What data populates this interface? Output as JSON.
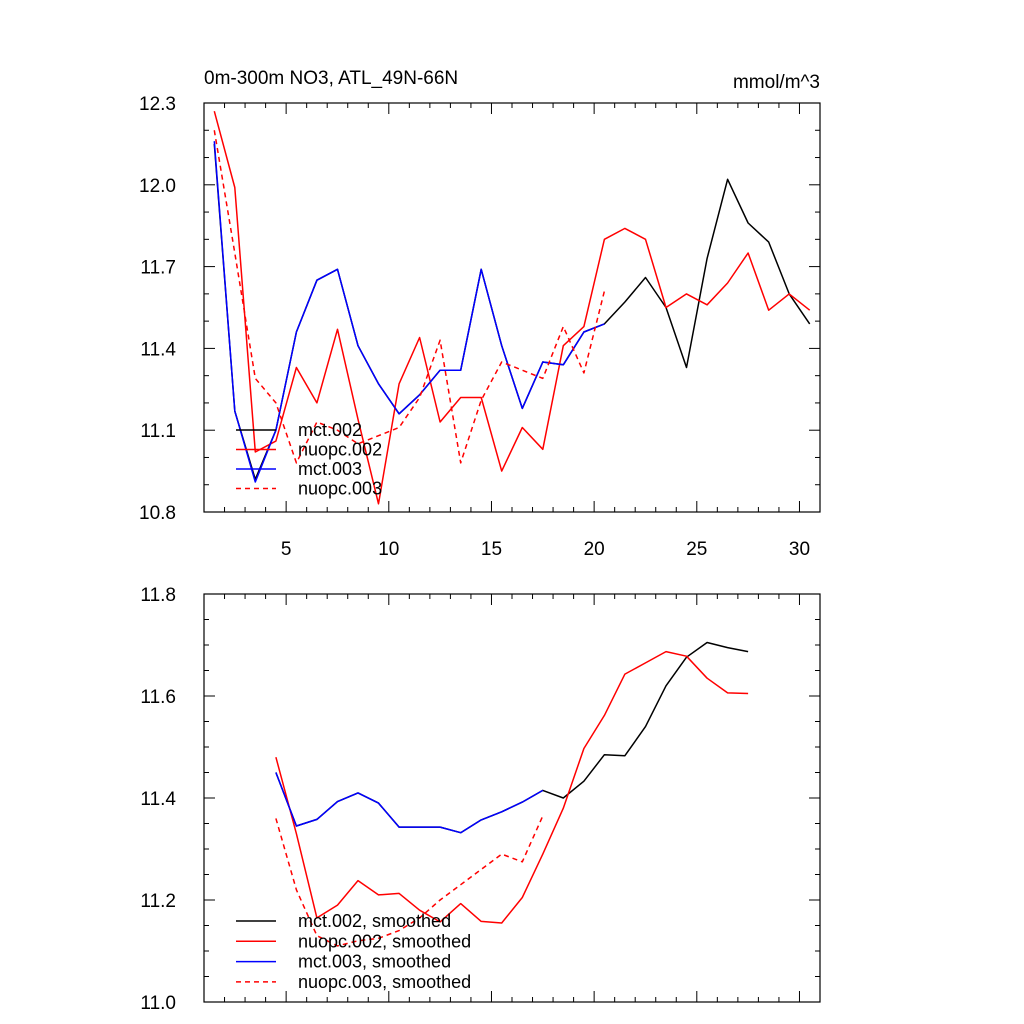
{
  "figure": {
    "title_left": "0m-300m NO3, ATL_49N-66N",
    "title_right": "mmol/m^3"
  },
  "chart_data": [
    {
      "type": "line",
      "title": "0m-300m NO3, ATL_49N-66N",
      "units": "mmol/m^3",
      "xlim": [
        1,
        31
      ],
      "ylim": [
        10.8,
        12.3
      ],
      "xticks": [
        5,
        10,
        15,
        20,
        25,
        30
      ],
      "xtick_labels": [
        "5",
        "10",
        "15",
        "20",
        "25",
        "30"
      ],
      "yticks": [
        10.8,
        11.1,
        11.4,
        11.7,
        12.0,
        12.3
      ],
      "ytick_labels": [
        "10.8",
        "11.1",
        "11.4",
        "11.7",
        "12.0",
        "12.3"
      ],
      "legend_position": "lower-left",
      "series": [
        {
          "name": "mct.002",
          "color": "#000000",
          "dash": "solid",
          "x": [
            1.5,
            2.5,
            3.5,
            4.5,
            5.5,
            6.5,
            7.5,
            8.5,
            9.5,
            10.5,
            11.5,
            12.5,
            13.5,
            14.5,
            15.5,
            16.5,
            17.5,
            18.5,
            19.5,
            20.5,
            21.5,
            22.5,
            23.5,
            24.5,
            25.5,
            26.5,
            27.5,
            28.5,
            29.5,
            30.5
          ],
          "values": [
            12.15,
            11.17,
            10.92,
            11.1,
            11.46,
            11.65,
            11.69,
            11.41,
            11.27,
            11.16,
            11.23,
            11.32,
            11.32,
            11.69,
            11.41,
            11.18,
            11.35,
            11.34,
            11.46,
            11.49,
            11.57,
            11.66,
            11.55,
            11.33,
            11.73,
            12.02,
            11.86,
            11.79,
            11.6,
            11.49
          ]
        },
        {
          "name": "nuopc.002",
          "color": "#ff0000",
          "dash": "solid",
          "x": [
            1.5,
            2.5,
            3.5,
            4.5,
            5.5,
            6.5,
            7.5,
            8.5,
            9.5,
            10.5,
            11.5,
            12.5,
            13.5,
            14.5,
            15.5,
            16.5,
            17.5,
            18.5,
            19.5,
            20.5,
            21.5,
            22.5,
            23.5,
            24.5,
            25.5,
            26.5,
            27.5,
            28.5,
            29.5,
            30.5
          ],
          "values": [
            12.27,
            11.99,
            11.02,
            11.06,
            11.33,
            11.2,
            11.47,
            11.14,
            10.83,
            11.27,
            11.44,
            11.13,
            11.22,
            11.22,
            10.95,
            11.11,
            11.03,
            11.41,
            11.48,
            11.8,
            11.84,
            11.8,
            11.55,
            11.6,
            11.56,
            11.64,
            11.75,
            11.54,
            11.6,
            11.54
          ]
        },
        {
          "name": "mct.003",
          "color": "#0000ff",
          "dash": "solid",
          "x": [
            1.5,
            2.5,
            3.5,
            4.5,
            5.5,
            6.5,
            7.5,
            8.5,
            9.5,
            10.5,
            11.5,
            12.5,
            13.5,
            14.5,
            15.5,
            16.5,
            17.5,
            18.5,
            19.5,
            20.5
          ],
          "values": [
            12.16,
            11.17,
            10.91,
            11.1,
            11.46,
            11.65,
            11.69,
            11.41,
            11.27,
            11.16,
            11.23,
            11.32,
            11.32,
            11.69,
            11.41,
            11.18,
            11.35,
            11.34,
            11.46,
            11.49
          ]
        },
        {
          "name": "nuopc.003",
          "color": "#ff0000",
          "dash": "dashed",
          "x": [
            1.5,
            2.5,
            3.5,
            4.5,
            5.5,
            6.5,
            7.5,
            8.5,
            9.5,
            10.5,
            11.5,
            12.5,
            13.5,
            14.5,
            15.5,
            16.5,
            17.5,
            18.5,
            19.5,
            20.5
          ],
          "values": [
            12.2,
            11.75,
            11.29,
            11.2,
            10.98,
            11.13,
            11.1,
            11.05,
            11.08,
            11.11,
            11.22,
            11.43,
            10.98,
            11.21,
            11.35,
            11.32,
            11.29,
            11.48,
            11.31,
            11.61
          ]
        }
      ]
    },
    {
      "type": "line",
      "xlim": [
        1,
        31
      ],
      "ylim": [
        11.0,
        11.8
      ],
      "yticks": [
        11.0,
        11.2,
        11.4,
        11.6,
        11.8
      ],
      "ytick_labels": [
        "11.0",
        "11.2",
        "11.4",
        "11.6",
        "11.8"
      ],
      "legend_position": "lower-left",
      "series": [
        {
          "name": "mct.002, smoothed",
          "color": "#000000",
          "dash": "solid",
          "x": [
            4.5,
            5.5,
            6.5,
            7.5,
            8.5,
            9.5,
            10.5,
            11.5,
            12.5,
            13.5,
            14.5,
            15.5,
            16.5,
            17.5,
            18.5,
            19.5,
            20.5,
            21.5,
            22.5,
            23.5,
            24.5,
            25.5,
            26.5,
            27.5
          ],
          "values": [
            11.45,
            11.345,
            11.358,
            11.393,
            11.41,
            11.39,
            11.343,
            11.343,
            11.343,
            11.332,
            11.357,
            11.373,
            11.392,
            11.415,
            11.4,
            11.433,
            11.485,
            11.483,
            11.54,
            11.62,
            11.676,
            11.705,
            11.695,
            11.687
          ]
        },
        {
          "name": "nuopc.002, smoothed",
          "color": "#ff0000",
          "dash": "solid",
          "x": [
            4.5,
            5.5,
            6.5,
            7.5,
            8.5,
            9.5,
            10.5,
            11.5,
            12.5,
            13.5,
            14.5,
            15.5,
            16.5,
            17.5,
            18.5,
            19.5,
            20.5,
            21.5,
            22.5,
            23.5,
            24.5,
            25.5,
            26.5,
            27.5
          ],
          "values": [
            11.48,
            11.33,
            11.165,
            11.19,
            11.238,
            11.21,
            11.213,
            11.18,
            11.157,
            11.193,
            11.158,
            11.155,
            11.205,
            11.29,
            11.38,
            11.497,
            11.562,
            11.643,
            11.665,
            11.687,
            11.678,
            11.635,
            11.606,
            11.605
          ]
        },
        {
          "name": "mct.003, smoothed",
          "color": "#0000ff",
          "dash": "solid",
          "x": [
            4.5,
            5.5,
            6.5,
            7.5,
            8.5,
            9.5,
            10.5,
            11.5,
            12.5,
            13.5,
            14.5,
            15.5,
            16.5,
            17.5
          ],
          "values": [
            11.45,
            11.345,
            11.358,
            11.393,
            11.41,
            11.39,
            11.343,
            11.343,
            11.343,
            11.332,
            11.357,
            11.373,
            11.392,
            11.415
          ]
        },
        {
          "name": "nuopc.003, smoothed",
          "color": "#ff0000",
          "dash": "dashed",
          "x": [
            4.5,
            5.5,
            6.5,
            7.5,
            8.5,
            9.5,
            10.5,
            11.5,
            12.5,
            13.5,
            14.5,
            15.5,
            16.5,
            17.5
          ],
          "values": [
            11.36,
            11.22,
            11.13,
            11.11,
            11.12,
            11.125,
            11.14,
            11.165,
            11.2,
            11.23,
            11.26,
            11.29,
            11.275,
            11.365
          ]
        }
      ]
    }
  ]
}
